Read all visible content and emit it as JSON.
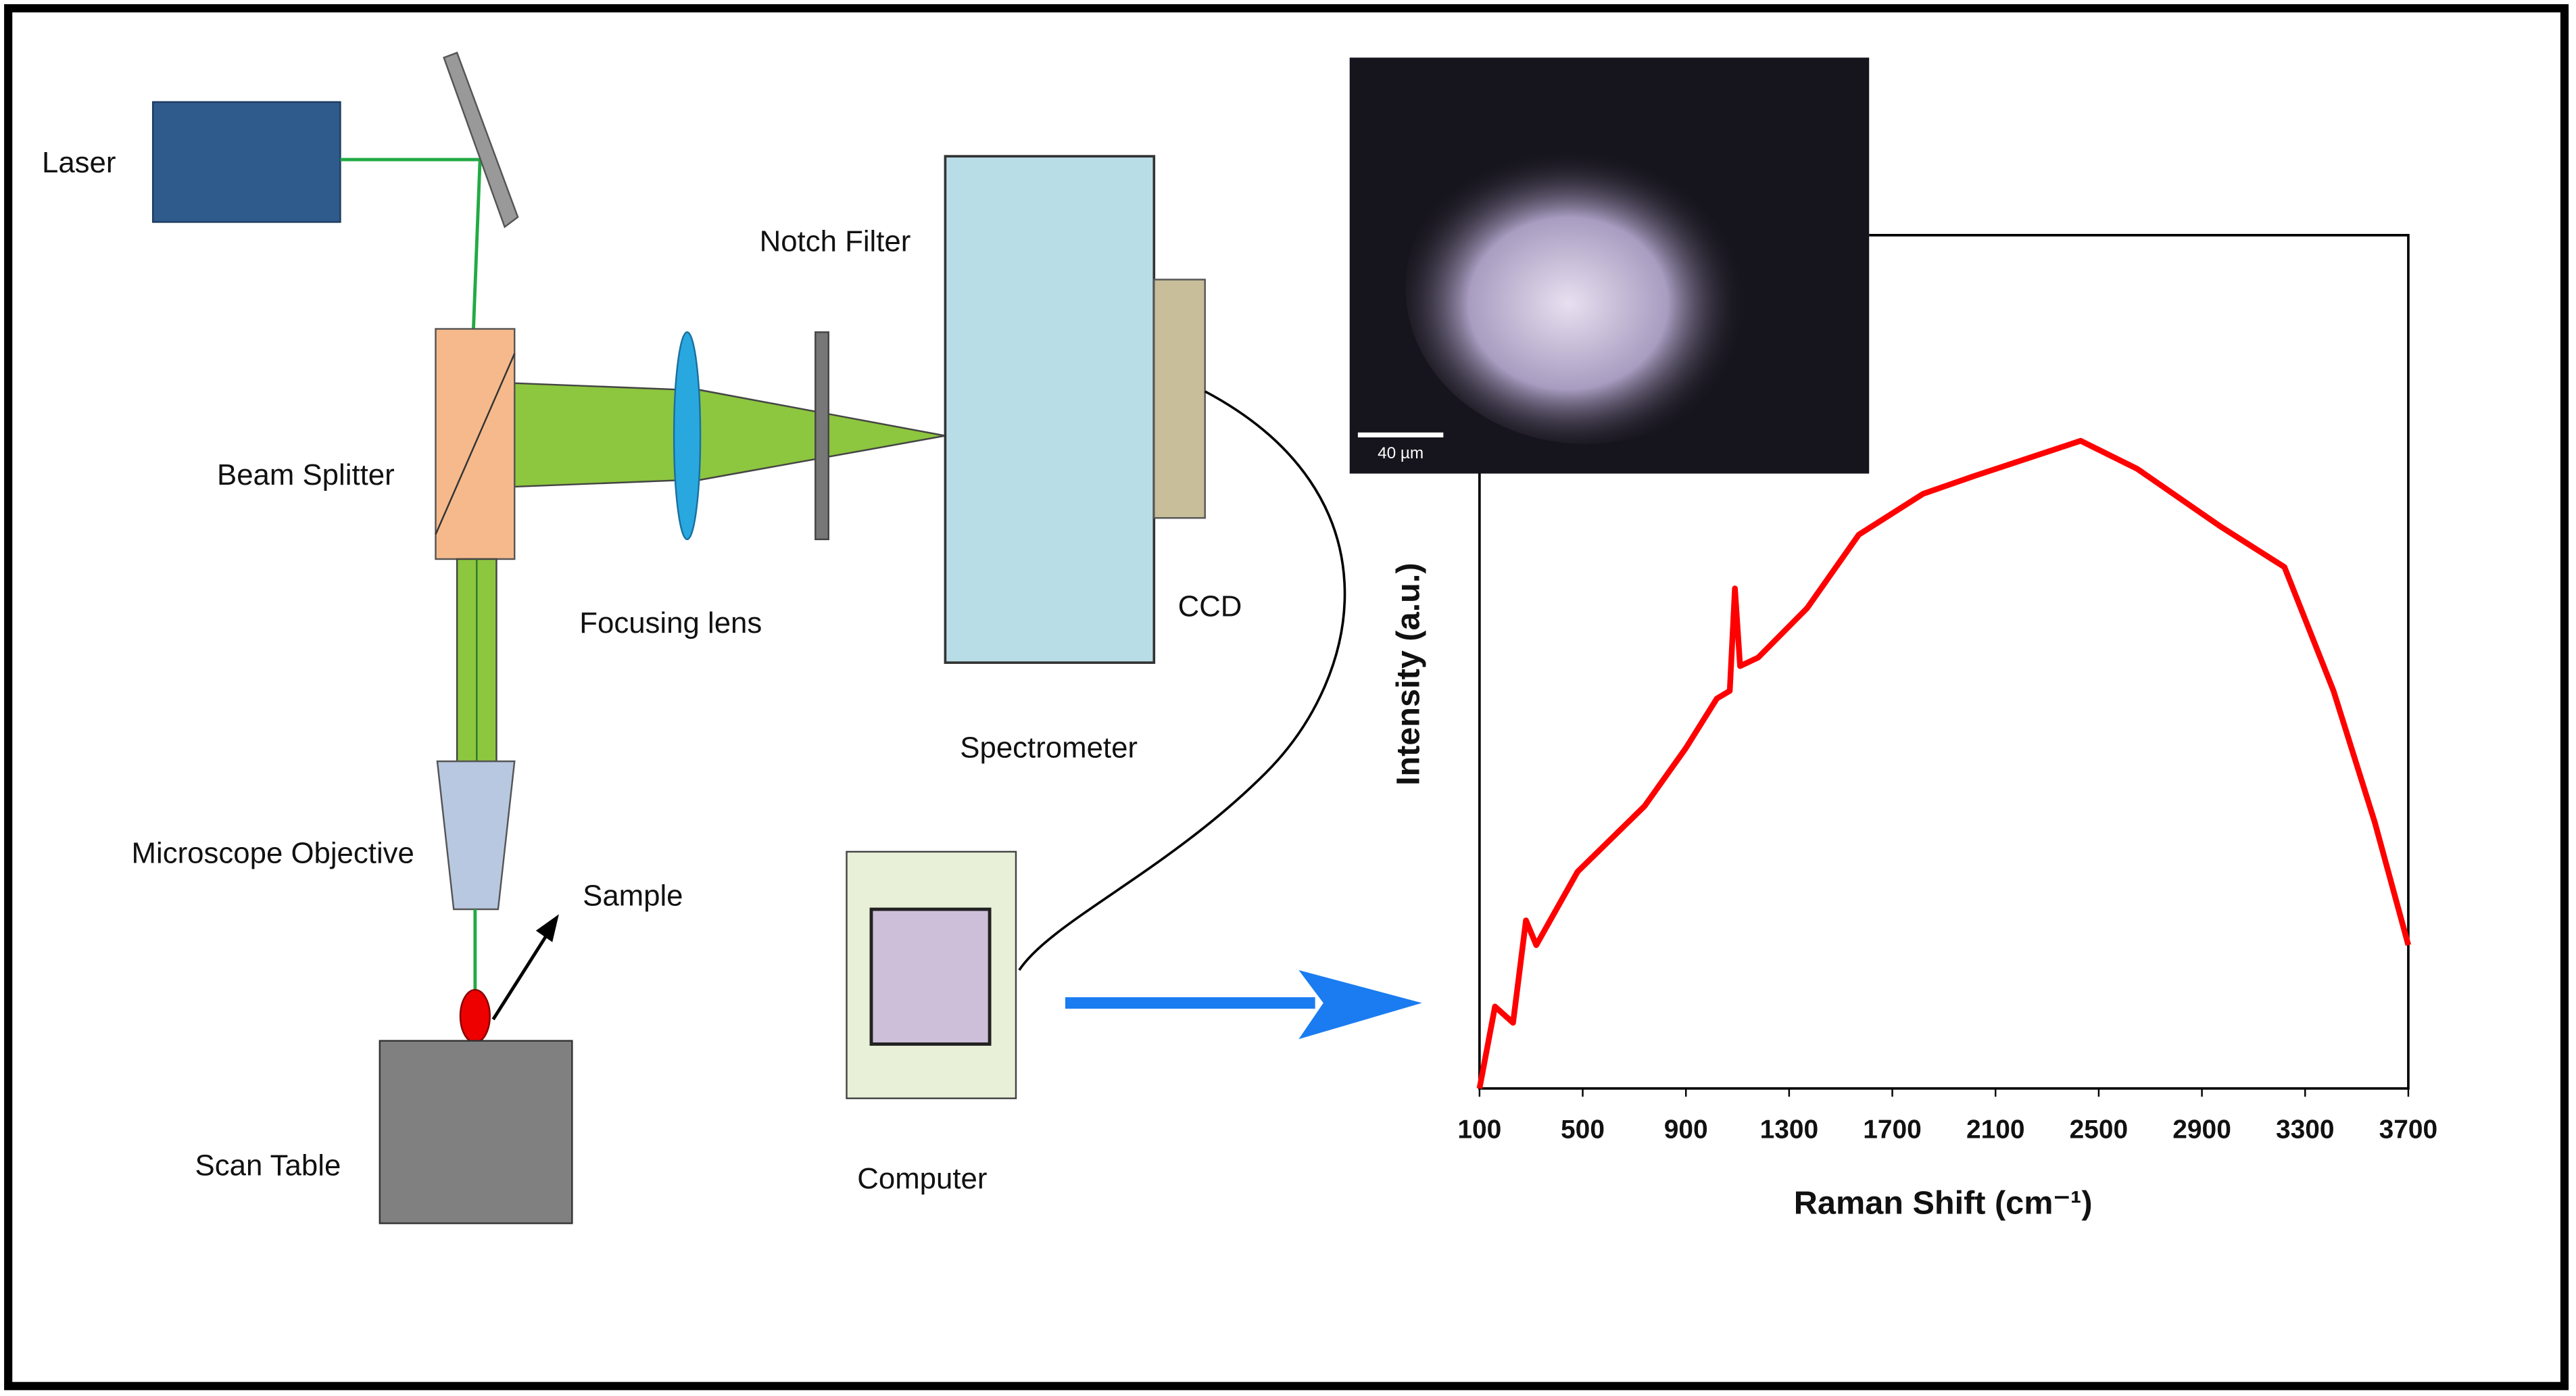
{
  "diagram": {
    "laser": "Laser",
    "notch_filter": "Notch Filter",
    "beam_splitter": "Beam Splitter",
    "focusing_lens": "Focusing lens",
    "ccd": "CCD",
    "spectrometer": "Spectrometer",
    "microscope_objective": "Microscope Objective",
    "sample": "Sample",
    "scan_table": "Scan Table",
    "computer": "Computer"
  },
  "image": {
    "scale_bar": "40 µm"
  },
  "chart_data": {
    "type": "line",
    "xlabel": "Raman Shift (cm⁻¹)",
    "ylabel": "Intensity (a.u.)",
    "x": [
      100,
      160,
      230,
      280,
      320,
      480,
      740,
      900,
      1020,
      1070,
      1090,
      1110,
      1180,
      1370,
      1570,
      1820,
      2010,
      2200,
      2430,
      2650,
      2970,
      3220,
      3410,
      3570,
      3700
    ],
    "series": [
      {
        "color": "#ff0000",
        "values": [
          0,
          9.6,
          7.7,
          19.7,
          16.8,
          25.4,
          33.1,
          39.9,
          45.7,
          46.6,
          58.6,
          49.5,
          50.5,
          56.3,
          64.9,
          69.7,
          71.7,
          73.6,
          75.9,
          72.6,
          65.9,
          61.1,
          46.6,
          31.2,
          16.8
        ]
      }
    ],
    "xlim": [
      100,
      3700
    ],
    "xticks": [
      100,
      500,
      900,
      1300,
      1700,
      2100,
      2500,
      2900,
      3300,
      3700
    ],
    "ylim": [
      0,
      100
    ]
  }
}
